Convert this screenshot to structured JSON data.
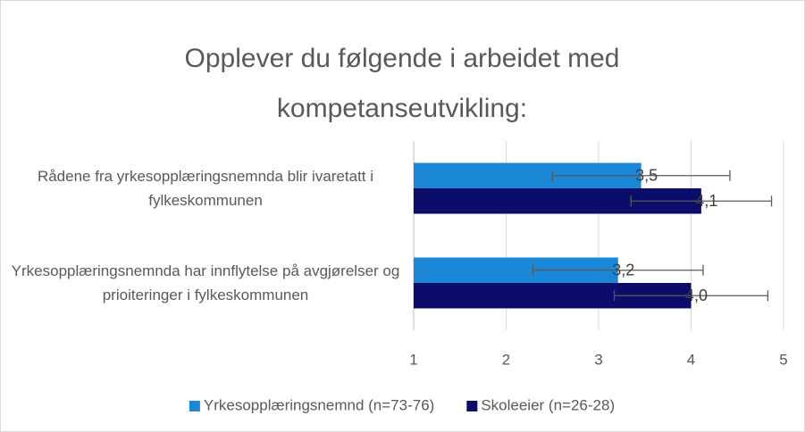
{
  "chart_data": {
    "type": "bar",
    "orientation": "horizontal",
    "title": "Opplever du følgende i arbeidet med kompetanseutvikling:",
    "categories": [
      "Rådene fra yrkesopplæringsnemnda blir ivaretatt i fylkeskommunen",
      "Yrkesopplæringsnemnda har innflytelse på avgjørelser og prioiteringer i fylkeskommunen"
    ],
    "series": [
      {
        "name": "Yrkesopplæringsnemnd (n=73-76)",
        "color": "#1b87d7",
        "values": [
          3.46,
          3.21
        ],
        "value_labels": [
          "3,5",
          "3,2"
        ],
        "errors": [
          0.96,
          0.92
        ]
      },
      {
        "name": "Skoleeier (n=26-28)",
        "color": "#0c0c6b",
        "values": [
          4.11,
          4.0
        ],
        "value_labels": [
          "4,1",
          "4,0"
        ],
        "errors": [
          0.76,
          0.83
        ]
      }
    ],
    "xlim": [
      1,
      5
    ],
    "xticks": [
      1,
      2,
      3,
      4,
      5
    ],
    "grid": true,
    "legend": "bottom"
  }
}
